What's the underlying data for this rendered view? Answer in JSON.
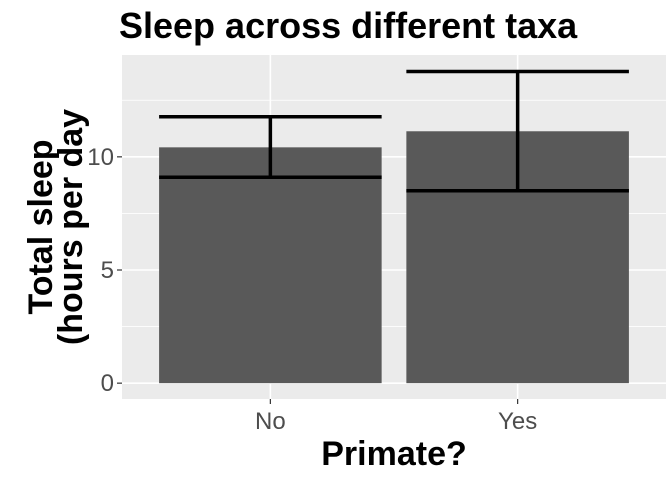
{
  "chart_data": {
    "type": "bar",
    "title": "Sleep across different taxa",
    "xlabel": "Primate?",
    "ylabel_lines": [
      "Total sleep",
      "(hours per day"
    ],
    "categories": [
      "No",
      "Yes"
    ],
    "values": [
      10.42,
      11.13
    ],
    "error_bars": [
      {
        "low": 9.1,
        "high": 11.77
      },
      {
        "low": 8.5,
        "high": 13.77
      }
    ],
    "ylim": [
      -0.7,
      14.5
    ],
    "yticks": [
      0,
      5,
      10
    ],
    "ytick_labels": [
      "0",
      "5",
      "10"
    ],
    "grid": true,
    "colors": {
      "bar": "#595959",
      "panel": "#ebebeb",
      "grid": "#ffffff",
      "errorbar": "#000000"
    }
  }
}
